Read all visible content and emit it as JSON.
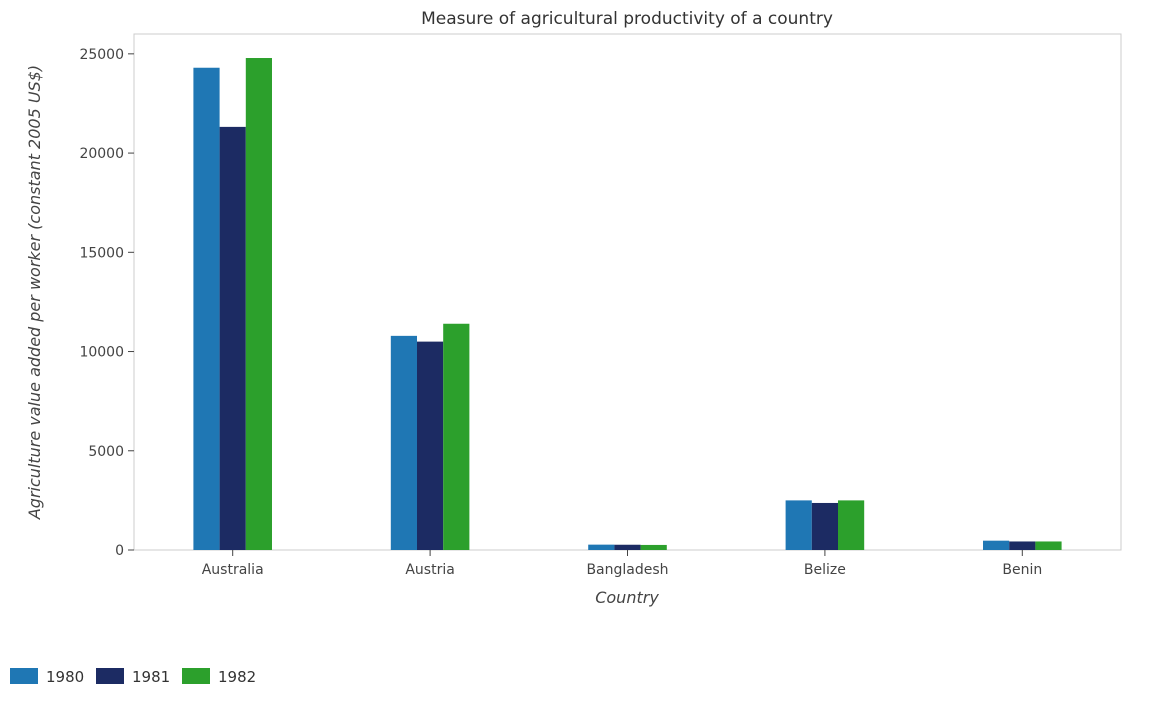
{
  "chart_data": {
    "type": "bar",
    "title": "Measure of agricultural productivity of a country",
    "xlabel": "Country",
    "ylabel": "Agriculture value added per worker (constant 2005 US$)",
    "categories": [
      "Australia",
      "Austria",
      "Bangladesh",
      "Belize",
      "Benin"
    ],
    "series": [
      {
        "name": "1980",
        "color": "#1f77b4",
        "values": [
          24300,
          10790,
          270,
          2500,
          470
        ]
      },
      {
        "name": "1981",
        "color": "#1c2b63",
        "values": [
          21320,
          10500,
          265,
          2370,
          430
        ]
      },
      {
        "name": "1982",
        "color": "#2ca02c",
        "values": [
          24790,
          11400,
          255,
          2500,
          430
        ]
      }
    ],
    "yticks": [
      0,
      5000,
      10000,
      15000,
      20000,
      25000
    ],
    "ylim": [
      0,
      26000
    ],
    "grid": false,
    "legend_position": "bottom-left"
  }
}
